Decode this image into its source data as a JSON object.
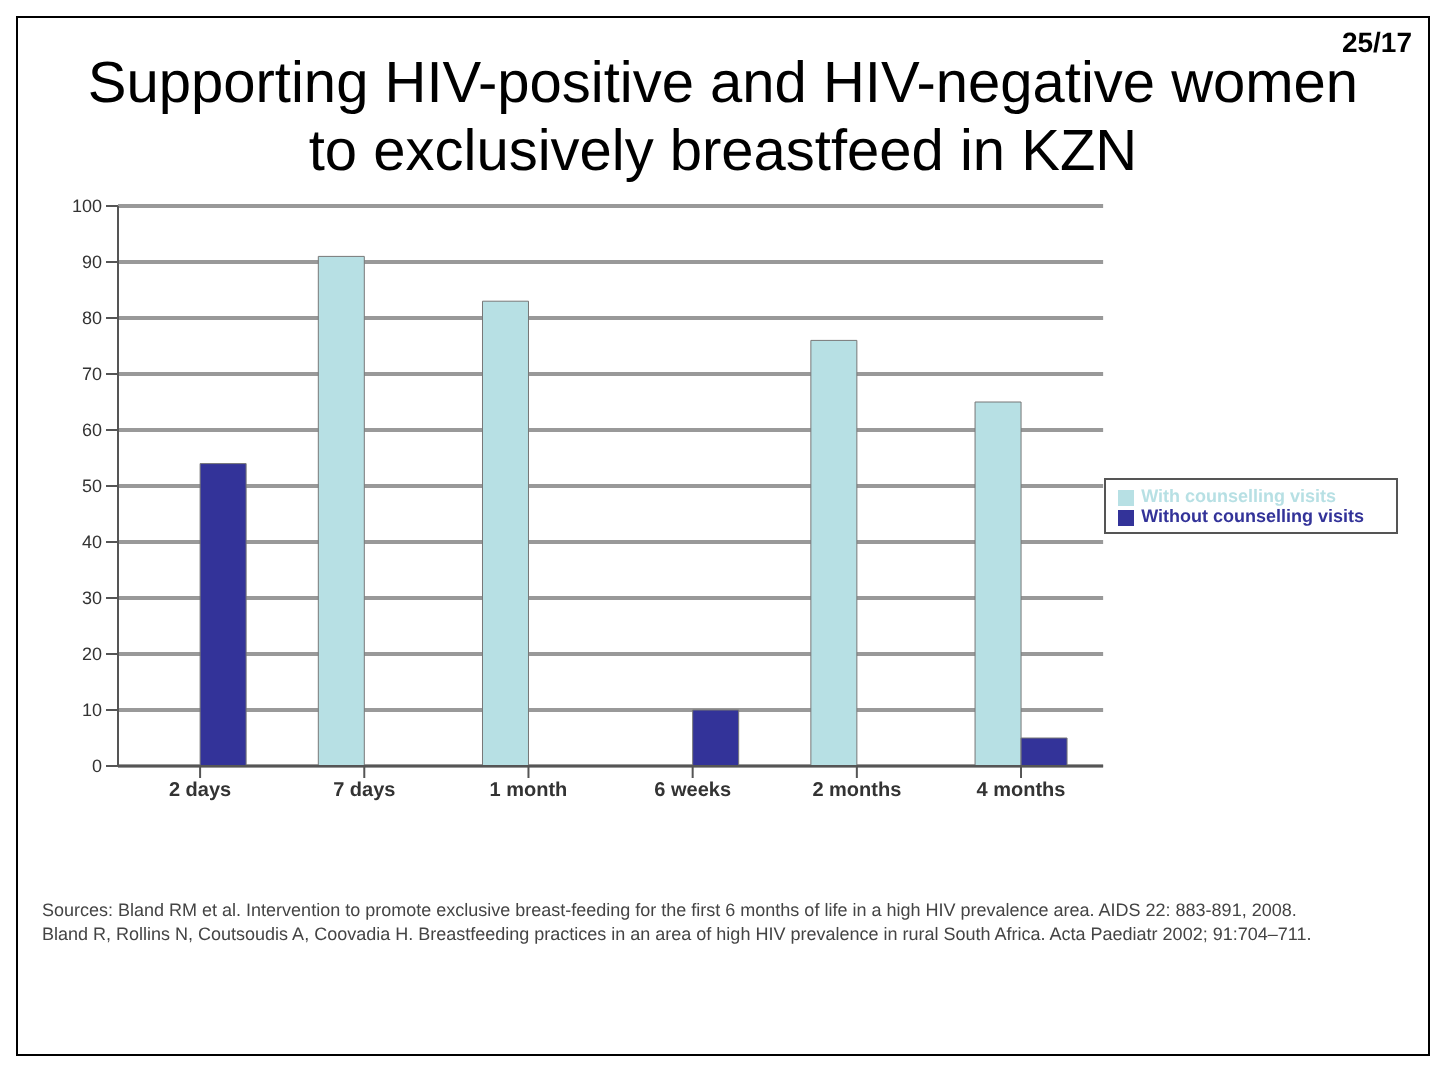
{
  "chart_data": {
    "type": "bar",
    "title": "Supporting HIV-positive and HIV-negative women to exclusively breastfeed in KZN",
    "categories": [
      "2 days",
      "7 days",
      "1 month",
      "6 weeks",
      "2 months",
      "4 months"
    ],
    "series": [
      {
        "name": "With counselling visits",
        "color": "#b7e0e4",
        "values": [
          null,
          91,
          83,
          null,
          76,
          65
        ]
      },
      {
        "name": "Without counselling visits",
        "color": "#333399",
        "values": [
          54,
          null,
          null,
          10,
          null,
          5
        ]
      }
    ],
    "ylim": [
      0,
      100
    ],
    "yticks": [
      0,
      10,
      20,
      30,
      40,
      50,
      60,
      70,
      80,
      90,
      100
    ],
    "grid": "y",
    "legend": "right",
    "annotations": [
      "25/17",
      "Sources: Bland RM et al. Intervention to promote exclusive breast-feeding for the first 6 months of life in a high HIV prevalence area. AIDS 22: 883-891, 2008.",
      "Bland R, Rollins N, Coutsoudis A, Coovadia H. Breastfeeding practices in an area of high HIV prevalence in rural South Africa. Acta Paediatr 2002; 91:704–711."
    ]
  }
}
